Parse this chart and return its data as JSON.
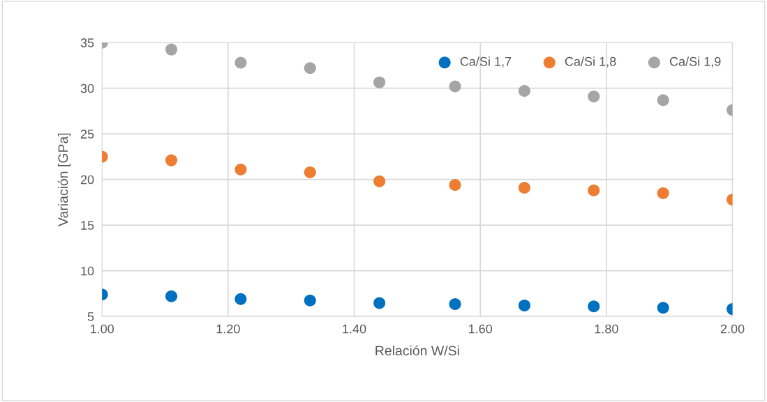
{
  "chart_data": {
    "type": "scatter",
    "xlabel": "Relación W/Si",
    "ylabel": "Variación [GPa]",
    "x": [
      1.0,
      1.11,
      1.22,
      1.33,
      1.44,
      1.56,
      1.67,
      1.78,
      1.89,
      2.0
    ],
    "series": [
      {
        "name": "Ca/Si 1,7",
        "color": "#0070c0",
        "values": [
          7.4,
          7.2,
          6.9,
          6.75,
          6.45,
          6.35,
          6.2,
          6.1,
          5.95,
          5.8
        ]
      },
      {
        "name": "Ca/Si 1,8",
        "color": "#ed7d31",
        "values": [
          22.5,
          22.1,
          21.1,
          20.8,
          19.8,
          19.4,
          19.1,
          18.8,
          18.5,
          17.8
        ]
      },
      {
        "name": "Ca/Si 1,9",
        "color": "#a5a5a5",
        "values": [
          35.0,
          34.24,
          32.8,
          32.2,
          30.65,
          30.2,
          29.7,
          29.1,
          28.7,
          27.6
        ]
      }
    ],
    "xlim": [
      1.0,
      2.0
    ],
    "xticks": [
      {
        "value": 1.0,
        "label": "1.00"
      },
      {
        "value": 1.2,
        "label": "1.20"
      },
      {
        "value": 1.4,
        "label": "1.40"
      },
      {
        "value": 1.6,
        "label": "1.60"
      },
      {
        "value": 1.8,
        "label": "1.80"
      },
      {
        "value": 2.0,
        "label": "2.00"
      }
    ],
    "ylim": [
      5,
      35
    ],
    "yticks": [
      5,
      10,
      15,
      20,
      25,
      30,
      35
    ],
    "grid": true,
    "legend": "top right",
    "marker": "circle"
  }
}
